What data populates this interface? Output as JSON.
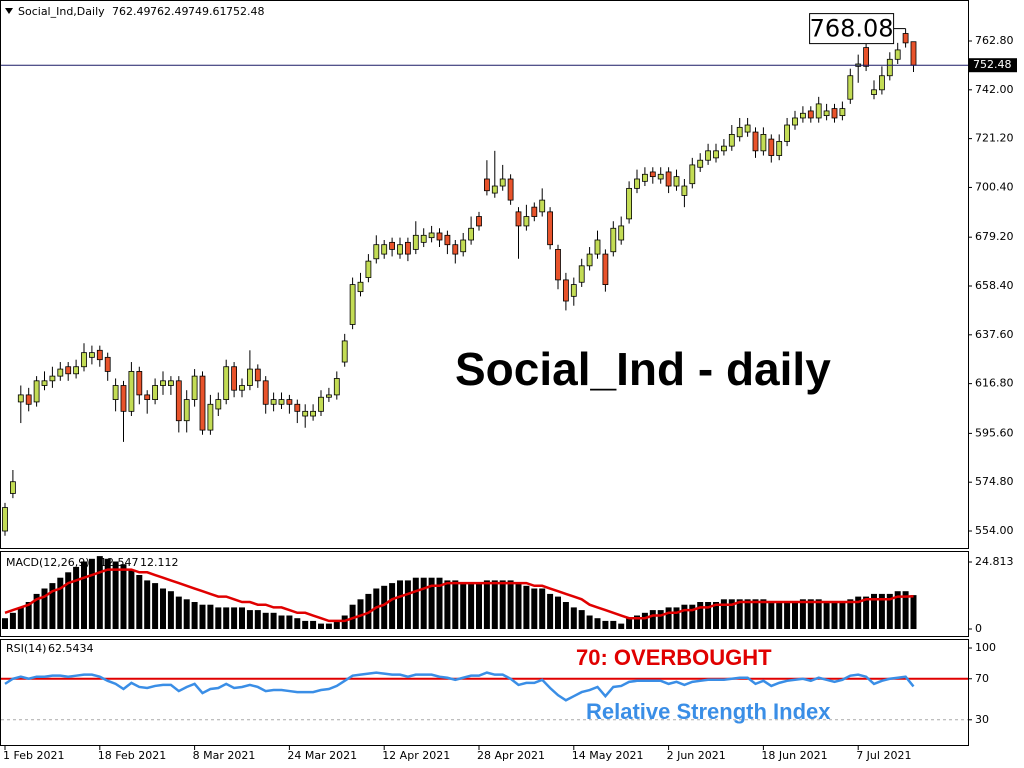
{
  "chart_data": [
    {
      "type": "candlestick",
      "title": "Social_Ind,Daily",
      "annotation": "Social_Ind - daily",
      "categories": [
        "1 Feb 2021",
        null,
        null,
        null,
        null,
        null,
        null,
        null,
        null,
        null,
        null,
        null,
        "18 Feb 2021",
        null,
        null,
        null,
        null,
        null,
        null,
        null,
        null,
        null,
        null,
        null,
        "8 Mar 2021",
        null,
        null,
        null,
        null,
        null,
        null,
        null,
        null,
        null,
        null,
        null,
        "24 Mar 2021",
        null,
        null,
        null,
        null,
        null,
        null,
        null,
        null,
        null,
        null,
        null,
        "12 Apr 2021",
        null,
        null,
        null,
        null,
        null,
        null,
        null,
        null,
        null,
        null,
        null,
        "28 Apr 2021",
        null,
        null,
        null,
        null,
        null,
        null,
        null,
        null,
        null,
        null,
        null,
        "14 May 2021",
        null,
        null,
        null,
        null,
        null,
        null,
        null,
        null,
        null,
        null,
        null,
        "2 Jun 2021",
        null,
        null,
        null,
        null,
        null,
        null,
        null,
        null,
        null,
        null,
        null,
        "18 Jun 2021",
        null,
        null,
        null,
        null,
        null,
        null,
        null,
        null,
        null,
        null,
        null,
        "7 Jul 2021",
        null,
        null,
        null,
        null,
        null,
        null,
        null
      ],
      "candles": [
        [
          554,
          566,
          552,
          564
        ],
        [
          570,
          580,
          568,
          575
        ],
        [
          609,
          616,
          600,
          612
        ],
        [
          612,
          615,
          605,
          608
        ],
        [
          609,
          620,
          607,
          618
        ],
        [
          616,
          622,
          614,
          618
        ],
        [
          618,
          624,
          615,
          620
        ],
        [
          620,
          626,
          618,
          623
        ],
        [
          624,
          626,
          618,
          621
        ],
        [
          621,
          627,
          619,
          624
        ],
        [
          624,
          634,
          622,
          630
        ],
        [
          628,
          633,
          625,
          630
        ],
        [
          631,
          633,
          624,
          627
        ],
        [
          628,
          630,
          618,
          622
        ],
        [
          610,
          619,
          605,
          616
        ],
        [
          616,
          618,
          592,
          605
        ],
        [
          605,
          626,
          603,
          622
        ],
        [
          622,
          624,
          608,
          612
        ],
        [
          612,
          614,
          604,
          610
        ],
        [
          610,
          619,
          608,
          616
        ],
        [
          616,
          622,
          612,
          618
        ],
        [
          616,
          620,
          612,
          618
        ],
        [
          618,
          620,
          596,
          601
        ],
        [
          601,
          614,
          596,
          610
        ],
        [
          610,
          623,
          607,
          620
        ],
        [
          620,
          622,
          595,
          597
        ],
        [
          597,
          612,
          595,
          608
        ],
        [
          606,
          613,
          603,
          610
        ],
        [
          610,
          627,
          608,
          624
        ],
        [
          624,
          626,
          611,
          614
        ],
        [
          614,
          619,
          611,
          616
        ],
        [
          616,
          631,
          614,
          623
        ],
        [
          623,
          625,
          615,
          618
        ],
        [
          618,
          620,
          604,
          608
        ],
        [
          608,
          613,
          605,
          610
        ],
        [
          608,
          613,
          606,
          610
        ],
        [
          610,
          612,
          604,
          608
        ],
        [
          608,
          610,
          600,
          605
        ],
        [
          603,
          608,
          598,
          605
        ],
        [
          603,
          608,
          601,
          605
        ],
        [
          605,
          614,
          603,
          611
        ],
        [
          611,
          615,
          609,
          612
        ],
        [
          612,
          622,
          610,
          619
        ],
        [
          626,
          638,
          624,
          635
        ],
        [
          642,
          662,
          640,
          659
        ],
        [
          656,
          664,
          654,
          660
        ],
        [
          662,
          672,
          660,
          669
        ],
        [
          670,
          680,
          668,
          676
        ],
        [
          672,
          678,
          670,
          676
        ],
        [
          677,
          679,
          671,
          674
        ],
        [
          672,
          679,
          670,
          676
        ],
        [
          677,
          679,
          669,
          672
        ],
        [
          674,
          686,
          672,
          680
        ],
        [
          677,
          683,
          675,
          680
        ],
        [
          679,
          684,
          677,
          681
        ],
        [
          681,
          683,
          675,
          678
        ],
        [
          680,
          682,
          672,
          676
        ],
        [
          676,
          678,
          668,
          672
        ],
        [
          673,
          681,
          671,
          678
        ],
        [
          678,
          688,
          676,
          683
        ],
        [
          688,
          690,
          682,
          684
        ],
        [
          704,
          712,
          697,
          699
        ],
        [
          698,
          716,
          696,
          701
        ],
        [
          701,
          710,
          699,
          704
        ],
        [
          704,
          706,
          693,
          695
        ],
        [
          690,
          692,
          670,
          684
        ],
        [
          684,
          693,
          682,
          688
        ],
        [
          692,
          694,
          686,
          688
        ],
        [
          690,
          700,
          688,
          695
        ],
        [
          690,
          692,
          674,
          676
        ],
        [
          674,
          676,
          657,
          661
        ],
        [
          661,
          664,
          648,
          652
        ],
        [
          654,
          662,
          650,
          659
        ],
        [
          660,
          670,
          658,
          667
        ],
        [
          667,
          675,
          665,
          672
        ],
        [
          672,
          682,
          670,
          678
        ],
        [
          672,
          674,
          656,
          659
        ],
        [
          673,
          686,
          671,
          683
        ],
        [
          678,
          688,
          676,
          684
        ],
        [
          687,
          703,
          685,
          700
        ],
        [
          700,
          708,
          698,
          704
        ],
        [
          703,
          709,
          701,
          706
        ],
        [
          707,
          709,
          702,
          705
        ],
        [
          704,
          709,
          702,
          706
        ],
        [
          707,
          709,
          698,
          701
        ],
        [
          701,
          708,
          699,
          705
        ],
        [
          697,
          704,
          692,
          701
        ],
        [
          702,
          713,
          700,
          710
        ],
        [
          709,
          715,
          707,
          712
        ],
        [
          712,
          719,
          710,
          716
        ],
        [
          713,
          719,
          711,
          716
        ],
        [
          716,
          721,
          714,
          718
        ],
        [
          718,
          727,
          716,
          723
        ],
        [
          722,
          730,
          720,
          726
        ],
        [
          724,
          730,
          722,
          727
        ],
        [
          724,
          726,
          713,
          716
        ],
        [
          716,
          726,
          714,
          723
        ],
        [
          721,
          723,
          711,
          714
        ],
        [
          714,
          723,
          712,
          720
        ],
        [
          720,
          730,
          718,
          727
        ],
        [
          727,
          733,
          725,
          730
        ],
        [
          730,
          735,
          728,
          732
        ],
        [
          733,
          735,
          728,
          730
        ],
        [
          730,
          739,
          728,
          736
        ],
        [
          731,
          736,
          729,
          733
        ],
        [
          734,
          736,
          728,
          730
        ],
        [
          731,
          737,
          729,
          734
        ],
        [
          738,
          751,
          736,
          748
        ],
        [
          752,
          757,
          745,
          753
        ],
        [
          760,
          762,
          750,
          752
        ],
        [
          740,
          746,
          738,
          742
        ],
        [
          742,
          752,
          740,
          748
        ],
        [
          748,
          758,
          746,
          755
        ],
        [
          755,
          762,
          753,
          759
        ],
        [
          766,
          768.08,
          760,
          762
        ],
        [
          762.49,
          762.49,
          749.61,
          752.48
        ]
      ],
      "up_color": "#c3dc55",
      "down_color": "#e8532b",
      "price_line_color": "#1a1a66",
      "ylim": [
        546.76,
        780.27
      ],
      "yticks": [
        {
          "value": 554,
          "label": "554.00"
        },
        {
          "value": 574.8,
          "label": "574.80"
        },
        {
          "value": 595.6,
          "label": "595.60"
        },
        {
          "value": 616.8,
          "label": "616.80"
        },
        {
          "value": 637.6,
          "label": "637.60"
        },
        {
          "value": 658.4,
          "label": "658.40"
        },
        {
          "value": 679.2,
          "label": "679.20"
        },
        {
          "value": 700.4,
          "label": "700.40"
        },
        {
          "value": 721.2,
          "label": "721.20"
        },
        {
          "value": 742,
          "label": "742.00"
        },
        {
          "value": 762.8,
          "label": "762.80"
        }
      ]
    },
    {
      "type": "macd",
      "label": "MACD(12,26,9)",
      "histogram": [
        4,
        6,
        8,
        10,
        13,
        15,
        17,
        19,
        21,
        23,
        25,
        26,
        27,
        26,
        25,
        24,
        22,
        20,
        18,
        17,
        15,
        14,
        12,
        11,
        10,
        9,
        9,
        8,
        8,
        8,
        8,
        7,
        7,
        6,
        6,
        5,
        5,
        4,
        3,
        3,
        2,
        2,
        3,
        5,
        9,
        11,
        13,
        15,
        16,
        17,
        18,
        18,
        19,
        19,
        19,
        19,
        18,
        18,
        17,
        17,
        17,
        18,
        18,
        18,
        18,
        17,
        16,
        15,
        15,
        13,
        12,
        10,
        8,
        7,
        5,
        4,
        3,
        3,
        2,
        4,
        5,
        6,
        7,
        7,
        8,
        8,
        9,
        9,
        10,
        10,
        10,
        11,
        11,
        11,
        11,
        11,
        11,
        10,
        10,
        10,
        10,
        11,
        11,
        11,
        10,
        10,
        10,
        11,
        12,
        12,
        13,
        13,
        13,
        14,
        14,
        12.547
      ],
      "signal": [
        6,
        7,
        8,
        9,
        11,
        12,
        14,
        15,
        17,
        18,
        19,
        20,
        21,
        22,
        22,
        22,
        22,
        21,
        21,
        20,
        19,
        18,
        17,
        16,
        15,
        14,
        13,
        12,
        12,
        11,
        10,
        10,
        9,
        9,
        8,
        8,
        7,
        6,
        6,
        5,
        4,
        3,
        3,
        3,
        4,
        5,
        6,
        8,
        9,
        11,
        12,
        13,
        14,
        15,
        16,
        16,
        17,
        17,
        17,
        17,
        17,
        17,
        17,
        17,
        17,
        17,
        17,
        16,
        16,
        15,
        14,
        13,
        12,
        11,
        9,
        8,
        7,
        6,
        5,
        4,
        4,
        4,
        5,
        5,
        6,
        6,
        7,
        7,
        8,
        8,
        9,
        9,
        9,
        10,
        10,
        10,
        10,
        10,
        10,
        10,
        10,
        10,
        10,
        10,
        10,
        10,
        10,
        10,
        10,
        11,
        11,
        11,
        11,
        12,
        12,
        12.112
      ],
      "histogram_color": "#000000",
      "signal_color": "#e00000",
      "ylim": [
        -2.59,
        28.52
      ],
      "yticks": [
        24.813,
        0
      ]
    },
    {
      "type": "rsi",
      "label": "RSI(14)",
      "values": [
        65,
        70,
        72,
        70,
        72,
        72,
        73,
        73,
        72,
        73,
        74,
        74,
        72,
        68,
        65,
        60,
        66,
        62,
        61,
        63,
        64,
        64,
        58,
        62,
        65,
        56,
        60,
        61,
        65,
        61,
        62,
        64,
        62,
        58,
        59,
        59,
        58,
        57,
        57,
        57,
        59,
        60,
        63,
        68,
        73,
        74,
        75,
        76,
        75,
        74,
        74,
        72,
        74,
        74,
        74,
        72,
        71,
        69,
        71,
        73,
        73,
        76,
        74,
        74,
        70,
        64,
        66,
        66,
        69,
        61,
        54,
        49,
        53,
        57,
        59,
        62,
        53,
        62,
        63,
        67,
        68,
        68,
        68,
        68,
        65,
        67,
        64,
        67,
        68,
        69,
        69,
        69,
        70,
        71,
        71,
        65,
        68,
        63,
        66,
        68,
        69,
        70,
        68,
        71,
        69,
        67,
        69,
        73,
        74,
        72,
        65,
        68,
        70,
        71,
        72,
        62.5434
      ],
      "color": "#3a8ee6",
      "ylim": [
        5.4,
        107.8
      ],
      "yticks": [
        100,
        70,
        30
      ],
      "levels": [
        {
          "value": 70,
          "color": "#e00000"
        },
        {
          "value": 30,
          "color": "#aaaaaa"
        }
      ],
      "annotations": [
        "70: OVERBOUGHT",
        "Relative Strength Index"
      ]
    }
  ]
}
